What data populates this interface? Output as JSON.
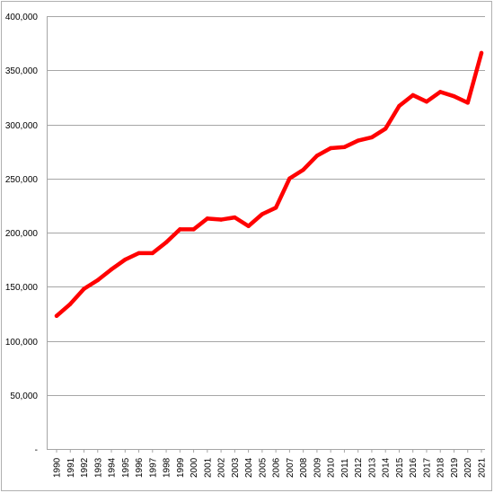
{
  "chart_data": {
    "type": "line",
    "title": "",
    "xlabel": "",
    "ylabel": "",
    "ylim": [
      0,
      400000
    ],
    "grid": true,
    "legend": "none",
    "line_color": "#ff0000",
    "y_ticks": [
      {
        "value": 0,
        "label": "-"
      },
      {
        "value": 50000,
        "label": "50,000"
      },
      {
        "value": 100000,
        "label": "100,000"
      },
      {
        "value": 150000,
        "label": "150,000"
      },
      {
        "value": 200000,
        "label": "200,000"
      },
      {
        "value": 250000,
        "label": "250,000"
      },
      {
        "value": 300000,
        "label": "300,000"
      },
      {
        "value": 350000,
        "label": "350,000"
      },
      {
        "value": 400000,
        "label": "400,000"
      }
    ],
    "categories": [
      "1990",
      "1991",
      "1992",
      "1993",
      "1994",
      "1995",
      "1996",
      "1997",
      "1998",
      "1999",
      "2000",
      "2001",
      "2002",
      "2003",
      "2004",
      "2005",
      "2006",
      "2007",
      "2008",
      "2009",
      "2010",
      "2011",
      "2012",
      "2013",
      "2014",
      "2015",
      "2016",
      "2017",
      "2018",
      "2019",
      "2020",
      "2021"
    ],
    "series": [
      {
        "values": [
          123000,
          134000,
          148000,
          156000,
          166000,
          175000,
          181000,
          181000,
          191000,
          203000,
          203000,
          213000,
          212000,
          214000,
          206000,
          217000,
          223000,
          250000,
          258000,
          271000,
          278000,
          279000,
          285000,
          288000,
          296000,
          317000,
          327000,
          321000,
          330000,
          326000,
          320000,
          366000
        ]
      }
    ]
  }
}
